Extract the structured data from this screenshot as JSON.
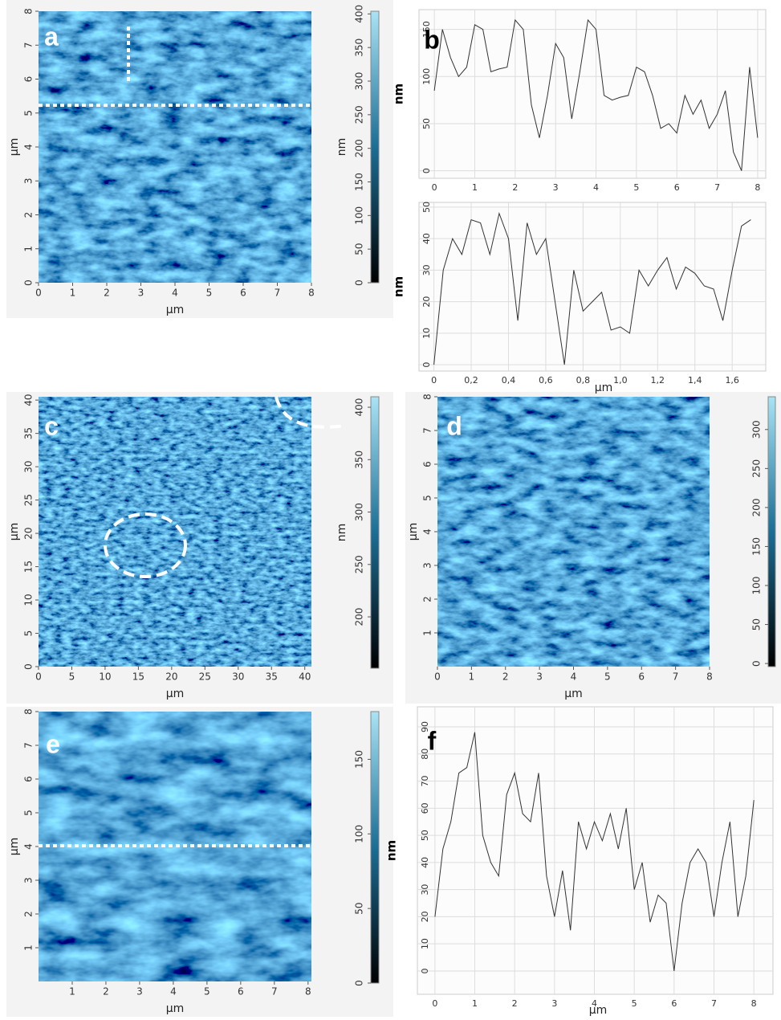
{
  "chart_data": [
    {
      "type": "image",
      "label": "a",
      "xlabel": "µm",
      "ylabel": "µm",
      "xlim": [
        0,
        8
      ],
      "ylim": [
        0,
        8
      ],
      "xticks": [
        0,
        1,
        2,
        3,
        4,
        5,
        6,
        7,
        8
      ],
      "yticks": [
        0,
        1,
        2,
        3,
        4,
        5,
        6,
        7,
        8
      ],
      "clabel": "nm",
      "clim": [
        0,
        404
      ],
      "cticks": [
        0,
        50,
        100,
        150,
        200,
        250,
        300,
        350,
        400
      ],
      "texture": 0.035
    },
    {
      "type": "line",
      "label": "b",
      "ylabel": "nm",
      "color": "#333333",
      "grid": true,
      "xlim": [
        -0.38,
        8.2
      ],
      "ylim": [
        -8,
        171
      ],
      "xticks": [
        0,
        1,
        2,
        3,
        4,
        5,
        6,
        7,
        8
      ],
      "yticks": [
        0,
        50,
        100,
        150
      ],
      "x": [
        0,
        0.2,
        0.4,
        0.6,
        0.8,
        1,
        1.2,
        1.4,
        1.6,
        1.8,
        2,
        2.2,
        2.4,
        2.6,
        2.8,
        3,
        3.2,
        3.4,
        3.6,
        3.8,
        4,
        4.2,
        4.4,
        4.6,
        4.8,
        5,
        5.2,
        5.4,
        5.6,
        5.8,
        6,
        6.2,
        6.4,
        6.6,
        6.8,
        7,
        7.2,
        7.4,
        7.6,
        7.8,
        8
      ],
      "values": [
        85,
        150,
        120,
        100,
        110,
        155,
        150,
        105,
        108,
        110,
        160,
        150,
        70,
        35,
        80,
        135,
        120,
        55,
        105,
        160,
        150,
        80,
        75,
        78,
        80,
        110,
        105,
        80,
        45,
        50,
        40,
        80,
        60,
        75,
        45,
        60,
        85,
        20,
        0,
        110,
        35
      ]
    },
    {
      "type": "line",
      "xlabel": "µm",
      "ylabel": "nm",
      "color": "#333333",
      "grid": true,
      "xlim": [
        -0.08,
        1.78
      ],
      "ylim": [
        -2,
        51.5
      ],
      "xticks": [
        0,
        {
          "value": 0.2,
          "label": "0,2"
        },
        {
          "value": 0.4,
          "label": "0,4"
        },
        {
          "value": 0.6,
          "label": "0,6"
        },
        {
          "value": 0.8,
          "label": "0,8"
        },
        {
          "value": 1,
          "label": "1,0"
        },
        {
          "value": 1.2,
          "label": "1,2"
        },
        {
          "value": 1.4,
          "label": "1,4"
        },
        {
          "value": 1.6,
          "label": "1,6"
        }
      ],
      "yticks": [
        0,
        10,
        20,
        30,
        40,
        50
      ],
      "x": [
        0,
        0.05,
        0.1,
        0.15,
        0.2,
        0.25,
        0.3,
        0.35,
        0.4,
        0.45,
        0.5,
        0.55,
        0.6,
        0.65,
        0.7,
        0.75,
        0.8,
        0.85,
        0.9,
        0.95,
        1,
        1.05,
        1.1,
        1.15,
        1.2,
        1.25,
        1.3,
        1.35,
        1.4,
        1.45,
        1.5,
        1.55,
        1.6,
        1.65,
        1.7
      ],
      "values": [
        0,
        30,
        40,
        35,
        46,
        45,
        35,
        48,
        40,
        14,
        45,
        35,
        40,
        20,
        0,
        30,
        17,
        20,
        23,
        11,
        12,
        10,
        30,
        25,
        30,
        34,
        24,
        31,
        29,
        25,
        24,
        14,
        30,
        44,
        46
      ]
    },
    {
      "type": "image",
      "label": "c",
      "xlabel": "µm",
      "ylabel": "µm",
      "xlim": [
        0,
        41
      ],
      "ylim": [
        0,
        40.5
      ],
      "xticks": [
        0,
        5,
        10,
        15,
        20,
        25,
        30,
        35,
        40
      ],
      "yticks": [
        0,
        5,
        10,
        15,
        20,
        25,
        30,
        35,
        40
      ],
      "clabel": "nm",
      "clim": [
        151,
        410
      ],
      "cticks": [
        200,
        250,
        300,
        350,
        400
      ],
      "texture": 0.09
    },
    {
      "type": "image",
      "label": "d",
      "xlabel": "µm",
      "ylabel": "µm",
      "xlim": [
        0,
        8
      ],
      "ylim": [
        0,
        8
      ],
      "xticks": [
        0,
        1,
        2,
        3,
        4,
        5,
        6,
        7,
        8
      ],
      "yticks": [
        1,
        2,
        3,
        4,
        5,
        6,
        7,
        8
      ],
      "clim": [
        -4,
        342
      ],
      "cticks": [
        0,
        50,
        100,
        150,
        200,
        250,
        300
      ],
      "texture": 0.04
    },
    {
      "type": "image",
      "label": "e",
      "xlabel": "µm",
      "ylabel": "µm",
      "xlim": [
        0,
        8.1
      ],
      "ylim": [
        0,
        8
      ],
      "xticks": [
        1,
        2,
        3,
        4,
        5,
        6,
        7,
        8
      ],
      "yticks": [
        1,
        2,
        3,
        4,
        5,
        6,
        7,
        8
      ],
      "clim": [
        0,
        182
      ],
      "cticks": [
        0,
        50,
        100,
        150
      ],
      "texture": 0.02
    },
    {
      "type": "line",
      "label": "f",
      "xlabel": "µm",
      "ylabel": "nm",
      "color": "#333333",
      "grid": true,
      "xlim": [
        -0.44,
        8.48
      ],
      "ylim": [
        -8.6,
        97.4
      ],
      "xticks": [
        0,
        1,
        2,
        3,
        4,
        5,
        6,
        7,
        8
      ],
      "yticks": [
        0,
        10,
        20,
        30,
        40,
        50,
        60,
        70,
        80,
        90
      ],
      "x": [
        0,
        0.2,
        0.4,
        0.6,
        0.8,
        1,
        1.2,
        1.4,
        1.6,
        1.8,
        2,
        2.2,
        2.4,
        2.6,
        2.8,
        3,
        3.2,
        3.4,
        3.6,
        3.8,
        4,
        4.2,
        4.4,
        4.6,
        4.8,
        5,
        5.2,
        5.4,
        5.6,
        5.8,
        6,
        6.2,
        6.4,
        6.6,
        6.8,
        7,
        7.2,
        7.4,
        7.6,
        7.8,
        8
      ],
      "values": [
        20,
        45,
        55,
        73,
        75,
        88,
        50,
        40,
        35,
        65,
        73,
        58,
        55,
        73,
        35,
        20,
        37,
        15,
        55,
        45,
        55,
        48,
        58,
        45,
        60,
        30,
        40,
        18,
        28,
        25,
        0,
        25,
        40,
        45,
        40,
        20,
        40,
        55,
        20,
        35,
        63
      ]
    }
  ]
}
